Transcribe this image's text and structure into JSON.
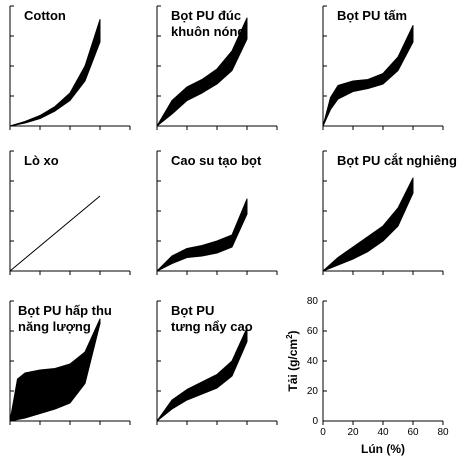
{
  "chart_data": [
    {
      "type": "area",
      "title": [
        "Cotton"
      ],
      "xlim": [
        0,
        80
      ],
      "ylim": [
        0,
        80
      ],
      "lower": {
        "x": [
          0,
          10,
          20,
          30,
          40,
          50,
          60
        ],
        "y": [
          0,
          2,
          5,
          10,
          17,
          30,
          56
        ]
      },
      "upper": {
        "x": [
          0,
          10,
          20,
          30,
          40,
          50,
          60
        ],
        "y": [
          0,
          3,
          7,
          13,
          22,
          40,
          71
        ]
      }
    },
    {
      "type": "area",
      "title": [
        "Bọt PU đúc",
        "khuôn nóng"
      ],
      "xlim": [
        0,
        80
      ],
      "ylim": [
        0,
        80
      ],
      "lower": {
        "x": [
          0,
          10,
          20,
          30,
          40,
          50,
          60
        ],
        "y": [
          0,
          8,
          17,
          22,
          28,
          37,
          58
        ]
      },
      "upper": {
        "x": [
          0,
          10,
          20,
          30,
          40,
          50,
          60
        ],
        "y": [
          0,
          17,
          26,
          31,
          38,
          50,
          72
        ]
      }
    },
    {
      "type": "area",
      "title": [
        "Bọt PU tấm"
      ],
      "xlim": [
        0,
        80
      ],
      "ylim": [
        0,
        80
      ],
      "lower": {
        "x": [
          0,
          5,
          10,
          20,
          30,
          40,
          50,
          60
        ],
        "y": [
          0,
          11,
          18,
          23,
          25,
          28,
          37,
          56
        ]
      },
      "upper": {
        "x": [
          0,
          5,
          10,
          20,
          30,
          40,
          50,
          60
        ],
        "y": [
          0,
          19,
          27,
          30,
          31,
          35,
          46,
          67
        ]
      }
    },
    {
      "type": "line",
      "title": [
        "Lò xo"
      ],
      "xlim": [
        0,
        80
      ],
      "ylim": [
        0,
        80
      ],
      "line": {
        "x": [
          0,
          60
        ],
        "y": [
          0,
          50
        ]
      }
    },
    {
      "type": "area",
      "title": [
        "Cao su tạo bọt"
      ],
      "xlim": [
        0,
        80
      ],
      "ylim": [
        0,
        80
      ],
      "lower": {
        "x": [
          0,
          10,
          20,
          30,
          40,
          50,
          60
        ],
        "y": [
          0,
          5,
          9,
          10,
          12,
          16,
          38
        ]
      },
      "upper": {
        "x": [
          0,
          10,
          20,
          30,
          40,
          50,
          60
        ],
        "y": [
          0,
          10,
          15,
          17,
          20,
          24,
          48
        ]
      }
    },
    {
      "type": "area",
      "title": [
        "Bọt PU cắt nghiêng"
      ],
      "xlim": [
        0,
        80
      ],
      "ylim": [
        0,
        80
      ],
      "lower": {
        "x": [
          0,
          10,
          20,
          30,
          40,
          50,
          60
        ],
        "y": [
          0,
          4,
          8,
          13,
          20,
          30,
          52
        ]
      },
      "upper": {
        "x": [
          0,
          10,
          20,
          30,
          40,
          50,
          60
        ],
        "y": [
          0,
          9,
          16,
          23,
          30,
          42,
          62
        ]
      }
    },
    {
      "type": "area",
      "title": [
        "Bọt PU hấp thu",
        "năng lượng"
      ],
      "xlim": [
        0,
        80
      ],
      "ylim": [
        0,
        80
      ],
      "lower": {
        "x": [
          0,
          10,
          20,
          30,
          40,
          50,
          60
        ],
        "y": [
          0,
          2,
          5,
          8,
          12,
          25,
          65
        ]
      },
      "upper": {
        "x": [
          0,
          5,
          10,
          20,
          30,
          40,
          50,
          60
        ],
        "y": [
          0,
          28,
          32,
          34,
          35,
          38,
          46,
          68
        ]
      }
    },
    {
      "type": "area",
      "title": [
        "Bọt PU",
        "tưng nẩy cao"
      ],
      "xlim": [
        0,
        80
      ],
      "ylim": [
        0,
        80
      ],
      "lower": {
        "x": [
          0,
          10,
          20,
          30,
          40,
          50,
          60
        ],
        "y": [
          0,
          8,
          14,
          18,
          22,
          30,
          53
        ]
      },
      "upper": {
        "x": [
          0,
          10,
          20,
          30,
          40,
          50,
          60
        ],
        "y": [
          0,
          14,
          21,
          26,
          31,
          40,
          62
        ]
      }
    },
    {
      "type": "axes",
      "title": [],
      "xlim": [
        0,
        80
      ],
      "ylim": [
        0,
        80
      ],
      "xticks": [
        "0",
        "20",
        "40",
        "60",
        "80"
      ],
      "yticks": [
        "0",
        "20",
        "40",
        "60",
        "80"
      ],
      "xlabel": "Lún (%)",
      "ylabel": "Tải (g/cm",
      "ylabel_sup": "2",
      "ylabel_close": ")"
    }
  ]
}
